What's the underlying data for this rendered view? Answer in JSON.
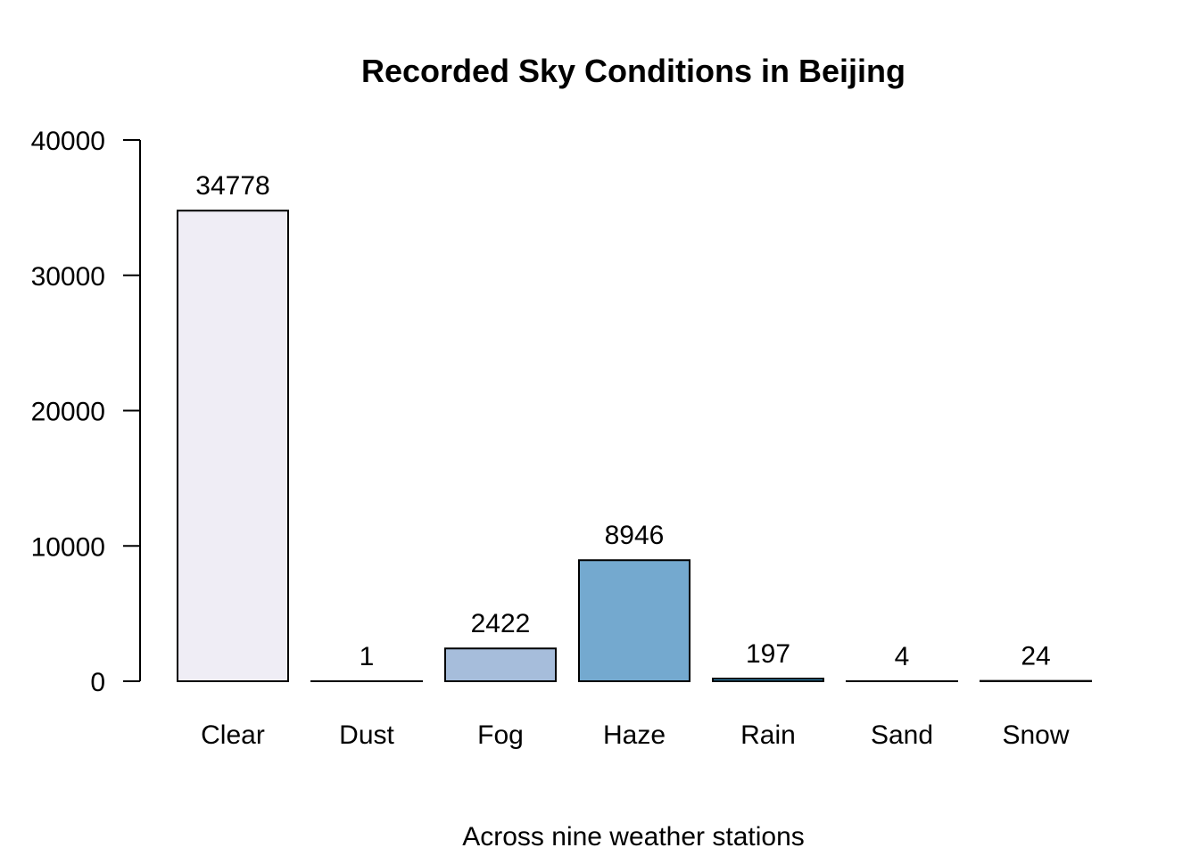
{
  "chart_data": {
    "type": "bar",
    "title": "Recorded Sky Conditions in Beijing",
    "xlabel": "Across nine weather stations",
    "ylabel": "",
    "categories": [
      "Clear",
      "Dust",
      "Fog",
      "Haze",
      "Rain",
      "Sand",
      "Snow"
    ],
    "values": [
      34778,
      1,
      2422,
      8946,
      197,
      4,
      24
    ],
    "value_labels": [
      "34778",
      "1",
      "2422",
      "8946",
      "197",
      "4",
      "24"
    ],
    "colors": [
      "#EFEDF5",
      "#D0D1E6",
      "#A6BDDB",
      "#74A9CF",
      "#3690C0",
      "#0570B0",
      "#034E7B"
    ],
    "ylim": [
      0,
      40000
    ],
    "y_ticks": [
      0,
      10000,
      20000,
      30000,
      40000
    ],
    "y_tick_labels": [
      "0",
      "10000",
      "20000",
      "30000",
      "40000"
    ],
    "grid": false,
    "legend": "none"
  }
}
